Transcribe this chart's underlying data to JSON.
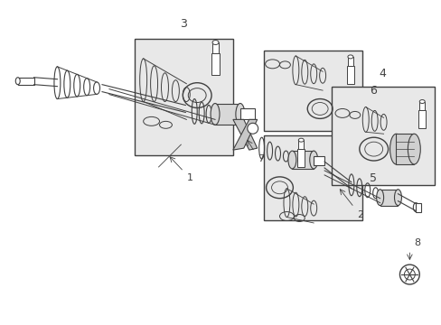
{
  "bg_color": "#ffffff",
  "line_color": "#404040",
  "box_bg": "#e8e8e8",
  "fig_width": 4.89,
  "fig_height": 3.6,
  "dpi": 100
}
